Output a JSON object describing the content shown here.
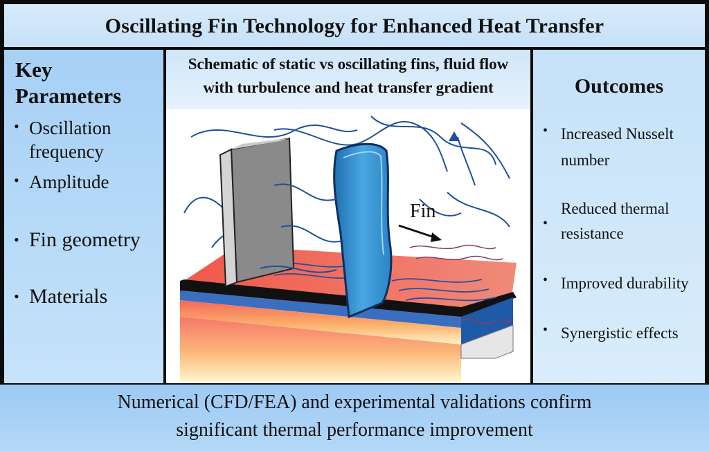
{
  "title": "Oscillating Fin Technology for Enhanced Heat Transfer",
  "left_panel": {
    "heading_line1": "Key",
    "heading_line2": "Parameters",
    "items": [
      {
        "line1": "Oscillation",
        "line2": "frequency"
      },
      {
        "line1": "Amplitude"
      },
      {
        "line1": "Fin geometry"
      },
      {
        "line1": "Materials"
      }
    ]
  },
  "center_panel": {
    "caption_line1": "Schematic of static vs oscillating fins, fluid flow",
    "caption_line2": "with turbulence and heat transfer gradient",
    "fin_label": "Fin"
  },
  "right_panel": {
    "heading": "Outcomes",
    "items": [
      {
        "line1": "Increased Nusselt",
        "line2": "number"
      },
      {
        "line1": "Reduced thermal",
        "line2": "resistance"
      },
      {
        "line1": "Improved durability"
      },
      {
        "line1": "Synergistic effects"
      }
    ]
  },
  "footer": {
    "line1": "Numerical (CFD/FEA) and experimental validations confirm",
    "line2": "significant thermal performance improvement"
  },
  "colors": {
    "fin_static": "#8a8a8a",
    "fin_oscillating": "#2f8fd0",
    "hot_base": "#e8473a",
    "flow_lines": "#1f4f9a"
  }
}
